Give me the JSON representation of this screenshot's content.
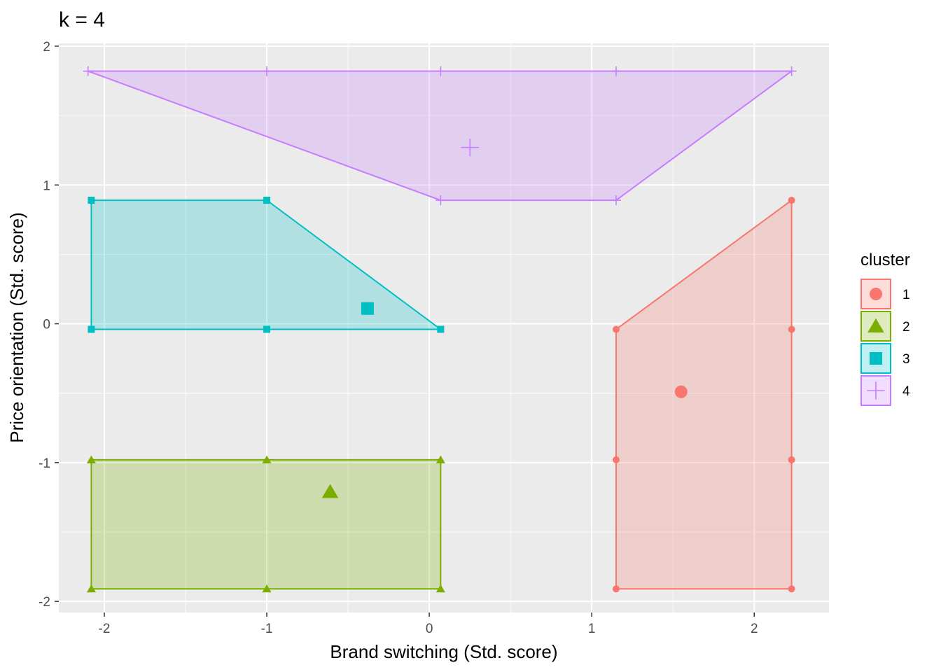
{
  "chart_data": {
    "type": "scatter",
    "title": "k = 4",
    "xlabel": "Brand switching (Std. score)",
    "ylabel": "Price orientation (Std. score)",
    "xlim": [
      -2.28,
      2.46
    ],
    "ylim": [
      -2.08,
      2.02
    ],
    "xticks": [
      -2,
      -1,
      0,
      1,
      2
    ],
    "xtick_labels": [
      "-2",
      "-1",
      "0",
      "1",
      "2"
    ],
    "yticks": [
      -2,
      -1,
      0,
      1,
      2
    ],
    "ytick_labels": [
      "-2",
      "-1",
      "0",
      "1",
      "2"
    ],
    "grid": true,
    "legend": {
      "title": "cluster",
      "position": "right"
    },
    "series": [
      {
        "name": "1",
        "color": "#F8766D",
        "shape": "circle",
        "points": [
          [
            1.15,
            -0.04
          ],
          [
            2.23,
            0.89
          ],
          [
            2.23,
            -0.04
          ],
          [
            1.15,
            -0.98
          ],
          [
            2.23,
            -0.98
          ],
          [
            1.15,
            -1.91
          ],
          [
            2.23,
            -1.91
          ]
        ],
        "hull": [
          [
            1.15,
            -0.04
          ],
          [
            2.23,
            0.89
          ],
          [
            2.23,
            -1.91
          ],
          [
            1.15,
            -1.91
          ]
        ],
        "centroid": [
          1.55,
          -0.49
        ]
      },
      {
        "name": "2",
        "color": "#7CAE00",
        "shape": "triangle",
        "points": [
          [
            -2.08,
            -0.98
          ],
          [
            -1.0,
            -0.98
          ],
          [
            0.07,
            -0.98
          ],
          [
            -2.08,
            -1.91
          ],
          [
            -1.0,
            -1.91
          ],
          [
            0.07,
            -1.91
          ]
        ],
        "hull": [
          [
            -2.08,
            -0.98
          ],
          [
            0.07,
            -0.98
          ],
          [
            0.07,
            -1.91
          ],
          [
            -2.08,
            -1.91
          ]
        ],
        "centroid": [
          -0.61,
          -1.21
        ]
      },
      {
        "name": "3",
        "color": "#00BFC4",
        "shape": "square",
        "points": [
          [
            -2.08,
            0.89
          ],
          [
            -1.0,
            0.89
          ],
          [
            -2.08,
            -0.04
          ],
          [
            -1.0,
            -0.04
          ],
          [
            0.07,
            -0.04
          ]
        ],
        "hull": [
          [
            -2.08,
            0.89
          ],
          [
            -1.0,
            0.89
          ],
          [
            0.07,
            -0.04
          ],
          [
            -2.08,
            -0.04
          ]
        ],
        "centroid": [
          -0.38,
          0.11
        ]
      },
      {
        "name": "4",
        "color": "#C77CFF",
        "shape": "plus",
        "points": [
          [
            -2.1,
            1.82
          ],
          [
            -1.0,
            1.82
          ],
          [
            0.07,
            1.82
          ],
          [
            1.15,
            1.82
          ],
          [
            2.23,
            1.82
          ],
          [
            0.07,
            0.89
          ],
          [
            1.15,
            0.89
          ]
        ],
        "hull": [
          [
            -2.1,
            1.82
          ],
          [
            2.23,
            1.82
          ],
          [
            1.15,
            0.89
          ],
          [
            0.07,
            0.89
          ]
        ],
        "centroid": [
          0.25,
          1.27
        ]
      }
    ]
  }
}
